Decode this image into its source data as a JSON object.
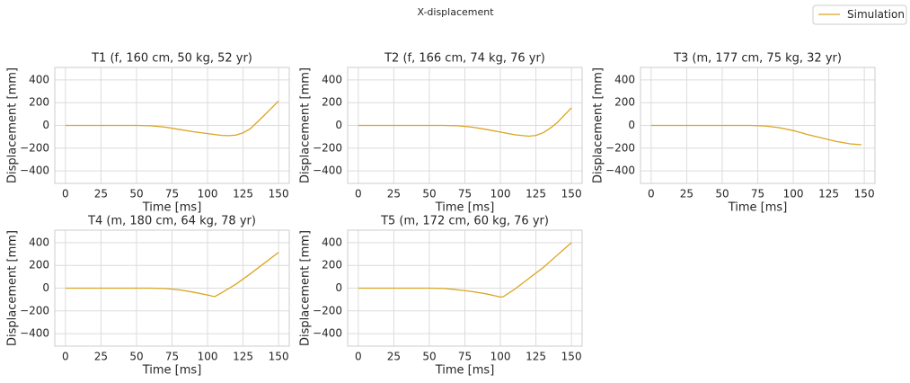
{
  "title": "X-displacement",
  "chart_data": [
    {
      "type": "line",
      "title": "T1 (f, 160 cm, 50 kg, 52 yr)",
      "xlabel": "Time [ms]",
      "ylabel": "Displacement [mm]",
      "x": [
        0,
        10,
        20,
        30,
        40,
        50,
        60,
        70,
        80,
        90,
        100,
        110,
        115,
        120,
        125,
        130,
        140,
        150
      ],
      "series": [
        {
          "name": "Simulation",
          "color": "#daa520",
          "values": [
            0,
            0,
            0,
            0,
            0,
            0,
            -3,
            -15,
            -35,
            -55,
            -72,
            -88,
            -90,
            -85,
            -65,
            -30,
            90,
            215
          ]
        }
      ],
      "xlim": [
        -7.5,
        157.5
      ],
      "ylim": [
        -510,
        510
      ],
      "xticks": [
        0,
        25,
        50,
        75,
        100,
        125,
        150
      ],
      "yticks": [
        {
          "value": -400,
          "label": "−400"
        },
        {
          "value": -200,
          "label": "−200"
        },
        0,
        200,
        400
      ],
      "grid": true
    },
    {
      "type": "line",
      "title": "T2 (f, 166 cm, 74 kg, 76 yr)",
      "xlabel": "Time [ms]",
      "ylabel": "Displacement [mm]",
      "x": [
        0,
        10,
        20,
        30,
        40,
        50,
        60,
        70,
        80,
        90,
        100,
        110,
        120,
        125,
        130,
        135,
        140,
        150
      ],
      "series": [
        {
          "name": "Simulation",
          "color": "#daa520",
          "values": [
            0,
            0,
            0,
            0,
            0,
            0,
            0,
            -3,
            -15,
            -35,
            -58,
            -82,
            -95,
            -88,
            -65,
            -25,
            25,
            155
          ]
        }
      ],
      "xlim": [
        -7.5,
        157.5
      ],
      "ylim": [
        -510,
        510
      ],
      "xticks": [
        0,
        25,
        50,
        75,
        100,
        125,
        150
      ],
      "yticks": [
        {
          "value": -400,
          "label": "−400"
        },
        {
          "value": -200,
          "label": "−200"
        },
        0,
        200,
        400
      ],
      "grid": true
    },
    {
      "type": "line",
      "title": "T3 (m, 177 cm, 75 kg, 32 yr)",
      "xlabel": "Time [ms]",
      "ylabel": "Displacement [mm]",
      "x": [
        0,
        10,
        20,
        30,
        40,
        50,
        60,
        70,
        80,
        90,
        100,
        110,
        120,
        130,
        140,
        148
      ],
      "series": [
        {
          "name": "Simulation",
          "color": "#daa520",
          "values": [
            0,
            0,
            0,
            0,
            0,
            0,
            0,
            0,
            -5,
            -20,
            -45,
            -80,
            -110,
            -140,
            -162,
            -170
          ]
        }
      ],
      "xlim": [
        -7.5,
        157.5
      ],
      "ylim": [
        -510,
        510
      ],
      "xticks": [
        0,
        25,
        50,
        75,
        100,
        125,
        150
      ],
      "yticks": [
        {
          "value": -400,
          "label": "−400"
        },
        {
          "value": -200,
          "label": "−200"
        },
        0,
        200,
        400
      ],
      "grid": true
    },
    {
      "type": "line",
      "title": "T4 (m, 180 cm, 64 kg, 78 yr)",
      "xlabel": "Time [ms]",
      "ylabel": "Displacement [mm]",
      "x": [
        0,
        10,
        20,
        30,
        40,
        50,
        60,
        70,
        80,
        90,
        100,
        105,
        110,
        120,
        130,
        140,
        150
      ],
      "series": [
        {
          "name": "Simulation",
          "color": "#daa520",
          "values": [
            0,
            0,
            0,
            0,
            0,
            0,
            0,
            -3,
            -15,
            -35,
            -60,
            -75,
            -40,
            35,
            125,
            220,
            315
          ]
        }
      ],
      "xlim": [
        -7.5,
        157.5
      ],
      "ylim": [
        -510,
        510
      ],
      "xticks": [
        0,
        25,
        50,
        75,
        100,
        125,
        150
      ],
      "yticks": [
        {
          "value": -400,
          "label": "−400"
        },
        {
          "value": -200,
          "label": "−200"
        },
        0,
        200,
        400
      ],
      "grid": true
    },
    {
      "type": "line",
      "title": "T5 (m, 172 cm, 60 kg, 76 yr)",
      "xlabel": "Time [ms]",
      "ylabel": "Displacement [mm]",
      "x": [
        0,
        10,
        20,
        30,
        40,
        50,
        60,
        70,
        80,
        90,
        100,
        102,
        110,
        120,
        130,
        140,
        150
      ],
      "series": [
        {
          "name": "Simulation",
          "color": "#daa520",
          "values": [
            0,
            0,
            0,
            0,
            0,
            0,
            -2,
            -15,
            -30,
            -50,
            -78,
            -75,
            -10,
            85,
            180,
            290,
            400
          ]
        }
      ],
      "xlim": [
        -7.5,
        157.5
      ],
      "ylim": [
        -510,
        510
      ],
      "xticks": [
        0,
        25,
        50,
        75,
        100,
        125,
        150
      ],
      "yticks": [
        {
          "value": -400,
          "label": "−400"
        },
        {
          "value": -200,
          "label": "−200"
        },
        0,
        200,
        400
      ],
      "grid": true
    }
  ]
}
